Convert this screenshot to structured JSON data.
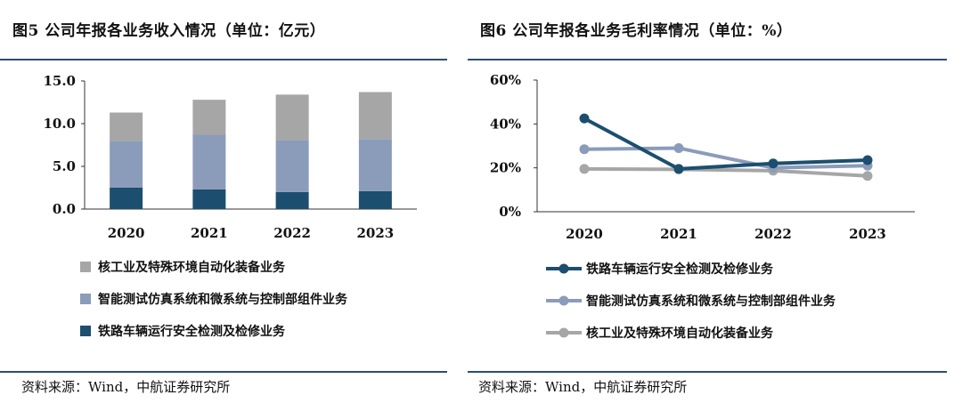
{
  "charts": [
    {
      "title": "图5 公司年报各业务收入情况（单位：亿元）",
      "source": "资料来源：Wind，中航证券研究所"
    },
    {
      "title": "图6 公司年报各业务毛利率情况（单位：%）",
      "source": "资料来源：Wind，中航证券研究所"
    }
  ],
  "chart_data": [
    {
      "type": "bar",
      "stacked": true,
      "title": "图5 公司年报各业务收入情况（单位：亿元）",
      "categories": [
        "2020",
        "2021",
        "2022",
        "2023"
      ],
      "ylim": [
        0,
        15
      ],
      "yticks": [
        "0.0",
        "5.0",
        "10.0",
        "15.0"
      ],
      "ytick_values": [
        0,
        5,
        10,
        15
      ],
      "series": [
        {
          "name": "铁路车辆运行安全检测及检修业务",
          "values": [
            2.5,
            2.3,
            2.0,
            2.1
          ],
          "color": "#1c4e6f"
        },
        {
          "name": "智能测试仿真系统和微系统与控制部组件业务",
          "values": [
            5.5,
            6.4,
            6.1,
            6.1
          ],
          "color": "#8b9cba"
        },
        {
          "name": "核工业及特殊环境自动化装备业务",
          "values": [
            3.3,
            4.1,
            5.3,
            5.5
          ],
          "color": "#a6a6a6"
        }
      ],
      "legend_order": [
        2,
        1,
        0
      ],
      "legend": "bottom"
    },
    {
      "type": "line",
      "title": "图6 公司年报各业务毛利率情况（单位：%）",
      "categories": [
        "2020",
        "2021",
        "2022",
        "2023"
      ],
      "ylim": [
        0,
        60
      ],
      "yticks": [
        "0%",
        "20%",
        "40%",
        "60%"
      ],
      "ytick_values": [
        0,
        20,
        40,
        60
      ],
      "series": [
        {
          "name": "铁路车辆运行安全检测及检修业务",
          "values": [
            42.5,
            19.5,
            22.0,
            23.5
          ],
          "color": "#1c4e6f"
        },
        {
          "name": "智能测试仿真系统和微系统与控制部组件业务",
          "values": [
            28.5,
            29.0,
            20.0,
            21.0
          ],
          "color": "#8b9cba"
        },
        {
          "name": "核工业及特殊环境自动化装备业务",
          "values": [
            19.5,
            19.3,
            18.7,
            16.3
          ],
          "color": "#a6a6a6"
        }
      ],
      "legend": "bottom"
    }
  ]
}
